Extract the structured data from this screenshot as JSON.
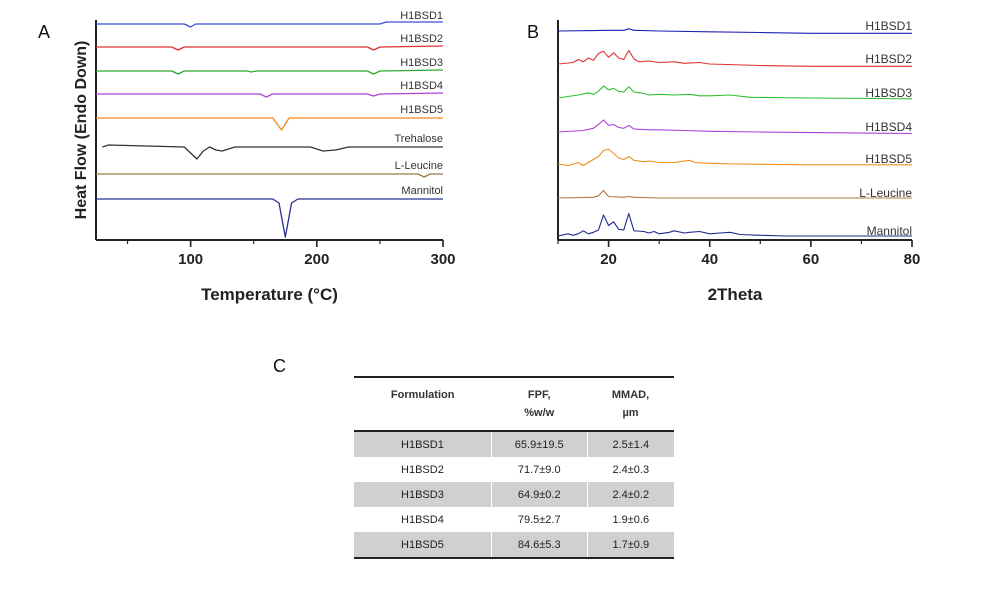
{
  "panels": {
    "a": "A",
    "b": "B",
    "c": "C"
  },
  "chart_data": [
    {
      "type": "line",
      "panel": "A",
      "xlabel": "Temperature (°C)",
      "ylabel": "Heat Flow (Endo Down)",
      "xlim": [
        25,
        300
      ],
      "xticks": [
        100,
        200,
        300
      ],
      "yticks": false,
      "series": [
        {
          "name": "H1BSD1",
          "color": "#3a4fd6",
          "points": [
            [
              25,
              0
            ],
            [
              95,
              0
            ],
            [
              100,
              -3
            ],
            [
              104,
              0
            ],
            [
              250,
              0
            ],
            [
              255,
              2
            ],
            [
              300,
              2
            ]
          ]
        },
        {
          "name": "H1BSD2",
          "color": "#e03131",
          "points": [
            [
              25,
              0
            ],
            [
              85,
              0
            ],
            [
              90,
              -3
            ],
            [
              95,
              0
            ],
            [
              240,
              0
            ],
            [
              245,
              -3
            ],
            [
              250,
              0
            ],
            [
              300,
              1
            ]
          ]
        },
        {
          "name": "H1BSD3",
          "color": "#2fa82f",
          "points": [
            [
              25,
              0
            ],
            [
              85,
              0
            ],
            [
              90,
              -3
            ],
            [
              95,
              0
            ],
            [
              145,
              0
            ],
            [
              148,
              -1
            ],
            [
              152,
              0
            ],
            [
              240,
              0
            ],
            [
              245,
              -3
            ],
            [
              250,
              0
            ],
            [
              300,
              1
            ]
          ]
        },
        {
          "name": "H1BSD4",
          "color": "#b040d8",
          "points": [
            [
              25,
              0
            ],
            [
              155,
              0
            ],
            [
              160,
              -3
            ],
            [
              165,
              0
            ],
            [
              240,
              0
            ],
            [
              245,
              -2
            ],
            [
              250,
              0
            ],
            [
              300,
              1
            ]
          ]
        },
        {
          "name": "H1BSD5",
          "color": "#f08a1c",
          "points": [
            [
              25,
              0
            ],
            [
              165,
              0
            ],
            [
              172,
              -12
            ],
            [
              178,
              0
            ],
            [
              300,
              0
            ]
          ]
        },
        {
          "name": "Trehalose",
          "color": "#333333",
          "points": [
            [
              30,
              0
            ],
            [
              35,
              2
            ],
            [
              95,
              0
            ],
            [
              100,
              -6
            ],
            [
              105,
              -12
            ],
            [
              110,
              -4
            ],
            [
              115,
              0
            ],
            [
              120,
              -3
            ],
            [
              125,
              -4
            ],
            [
              135,
              0
            ],
            [
              195,
              0
            ],
            [
              205,
              -4
            ],
            [
              215,
              -3
            ],
            [
              225,
              0
            ],
            [
              300,
              0
            ]
          ]
        },
        {
          "name": "L-Leucine",
          "color": "#a0784a",
          "points": [
            [
              25,
              0
            ],
            [
              280,
              0
            ],
            [
              285,
              -3
            ],
            [
              290,
              0
            ],
            [
              300,
              0
            ]
          ]
        },
        {
          "name": "Mannitol",
          "color": "#27308f",
          "points": [
            [
              25,
              0
            ],
            [
              165,
              0
            ],
            [
              170,
              -4
            ],
            [
              175,
              -38
            ],
            [
              180,
              -4
            ],
            [
              185,
              0
            ],
            [
              300,
              0
            ]
          ]
        }
      ]
    },
    {
      "type": "line",
      "panel": "B",
      "xlabel": "2Theta",
      "ylabel": "",
      "xlim": [
        10,
        80
      ],
      "xticks": [
        20,
        40,
        60,
        80
      ],
      "yticks": false,
      "series": [
        {
          "name": "H1BSD1",
          "color": "#1f1fb5",
          "points": [
            [
              10,
              0
            ],
            [
              17,
              0.5
            ],
            [
              20,
              1
            ],
            [
              23,
              1
            ],
            [
              24,
              3
            ],
            [
              25,
              1
            ],
            [
              30,
              0
            ],
            [
              40,
              -1
            ],
            [
              50,
              -2
            ],
            [
              60,
              -3
            ],
            [
              80,
              -3
            ]
          ]
        },
        {
          "name": "H1BSD2",
          "color": "#e03131",
          "points": [
            [
              10,
              0
            ],
            [
              13,
              2
            ],
            [
              14,
              6
            ],
            [
              15,
              3
            ],
            [
              16,
              8
            ],
            [
              17,
              5
            ],
            [
              18,
              14
            ],
            [
              19,
              17
            ],
            [
              20,
              9
            ],
            [
              21,
              15
            ],
            [
              22,
              8
            ],
            [
              23,
              6
            ],
            [
              24,
              18
            ],
            [
              25,
              7
            ],
            [
              26,
              3
            ],
            [
              28,
              4
            ],
            [
              30,
              2
            ],
            [
              33,
              3
            ],
            [
              35,
              1
            ],
            [
              38,
              2
            ],
            [
              40,
              0
            ],
            [
              50,
              -2
            ],
            [
              60,
              -3
            ],
            [
              80,
              -3
            ]
          ]
        },
        {
          "name": "H1BSD3",
          "color": "#2fbf2f",
          "points": [
            [
              10,
              0
            ],
            [
              14,
              4
            ],
            [
              16,
              7
            ],
            [
              17,
              5
            ],
            [
              18,
              9
            ],
            [
              19,
              16
            ],
            [
              20,
              11
            ],
            [
              21,
              13
            ],
            [
              22,
              9
            ],
            [
              23,
              8
            ],
            [
              24,
              15
            ],
            [
              25,
              8
            ],
            [
              27,
              6
            ],
            [
              28,
              4
            ],
            [
              30,
              5
            ],
            [
              33,
              4
            ],
            [
              36,
              5
            ],
            [
              38,
              3
            ],
            [
              40,
              3
            ],
            [
              44,
              4
            ],
            [
              48,
              1
            ],
            [
              60,
              0
            ],
            [
              80,
              -1
            ]
          ]
        },
        {
          "name": "H1BSD4",
          "color": "#b040d8",
          "points": [
            [
              10,
              0
            ],
            [
              15,
              2
            ],
            [
              17,
              5
            ],
            [
              18,
              10
            ],
            [
              19,
              16
            ],
            [
              20,
              9
            ],
            [
              21,
              10
            ],
            [
              22,
              6
            ],
            [
              23,
              5
            ],
            [
              24,
              9
            ],
            [
              25,
              4
            ],
            [
              28,
              3
            ],
            [
              30,
              3
            ],
            [
              35,
              2
            ],
            [
              40,
              1
            ],
            [
              50,
              0
            ],
            [
              80,
              -2
            ]
          ]
        },
        {
          "name": "H1BSD5",
          "color": "#f0901c",
          "points": [
            [
              10,
              0
            ],
            [
              12,
              -2
            ],
            [
              14,
              2
            ],
            [
              15,
              -2
            ],
            [
              16,
              2
            ],
            [
              17,
              6
            ],
            [
              18,
              10
            ],
            [
              19,
              18
            ],
            [
              20,
              20
            ],
            [
              21,
              14
            ],
            [
              22,
              8
            ],
            [
              23,
              6
            ],
            [
              24,
              10
            ],
            [
              25,
              5
            ],
            [
              27,
              3
            ],
            [
              28,
              4
            ],
            [
              30,
              2
            ],
            [
              33,
              2
            ],
            [
              36,
              5
            ],
            [
              37,
              2
            ],
            [
              40,
              1
            ],
            [
              45,
              0
            ],
            [
              60,
              -1
            ],
            [
              80,
              -1
            ]
          ]
        },
        {
          "name": "L-Leucine",
          "color": "#b07848",
          "points": [
            [
              10,
              0
            ],
            [
              17,
              1
            ],
            [
              18,
              3
            ],
            [
              19,
              10
            ],
            [
              20,
              2
            ],
            [
              23,
              1
            ],
            [
              24,
              2
            ],
            [
              25,
              1
            ],
            [
              30,
              0
            ],
            [
              80,
              0
            ]
          ]
        },
        {
          "name": "Mannitol",
          "color": "#1e2a8a",
          "points": [
            [
              10,
              0
            ],
            [
              12,
              3
            ],
            [
              13,
              1
            ],
            [
              14,
              3
            ],
            [
              15,
              7
            ],
            [
              16,
              3
            ],
            [
              17,
              5
            ],
            [
              18,
              8
            ],
            [
              19,
              28
            ],
            [
              20,
              14
            ],
            [
              21,
              19
            ],
            [
              22,
              9
            ],
            [
              23,
              8
            ],
            [
              24,
              30
            ],
            [
              25,
              7
            ],
            [
              27,
              6
            ],
            [
              28,
              4
            ],
            [
              29,
              6
            ],
            [
              30,
              3
            ],
            [
              32,
              5
            ],
            [
              33,
              7
            ],
            [
              35,
              4
            ],
            [
              36,
              5
            ],
            [
              38,
              6
            ],
            [
              40,
              3
            ],
            [
              42,
              4
            ],
            [
              44,
              5
            ],
            [
              46,
              2
            ],
            [
              50,
              1
            ],
            [
              55,
              0
            ],
            [
              80,
              0
            ]
          ]
        }
      ]
    },
    {
      "type": "table",
      "panel": "C",
      "columns": [
        [
          "Formulation"
        ],
        [
          "FPF,",
          "%w/w"
        ],
        [
          "MMAD,",
          "µm"
        ]
      ],
      "rows": [
        [
          "H1BSD1",
          "65.9±19.5",
          "2.5±1.4"
        ],
        [
          "H1BSD2",
          "71.7±9.0",
          "2.4±0.3"
        ],
        [
          "H1BSD3",
          "64.9±0.2",
          "2.4±0.2"
        ],
        [
          "H1BSD4",
          "79.5±2.7",
          "1.9±0.6"
        ],
        [
          "H1BSD5",
          "84.6±5.3",
          "1.7±0.9"
        ]
      ]
    }
  ]
}
